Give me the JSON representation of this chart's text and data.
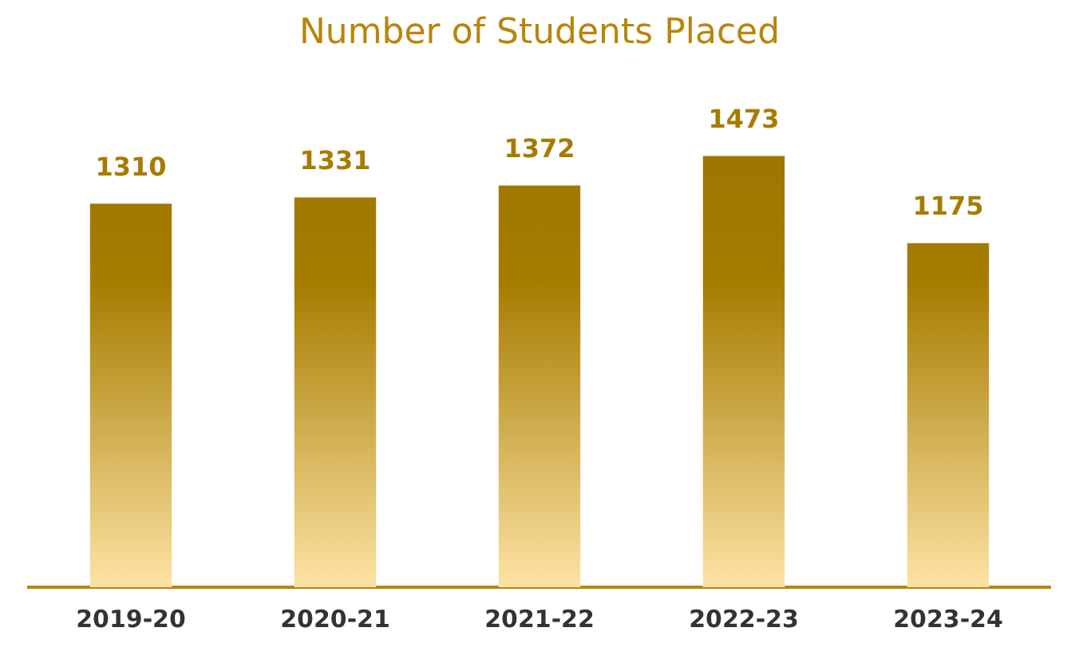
{
  "chart_data": {
    "type": "bar",
    "title": "Number of Students Placed",
    "categories": [
      "2019-20",
      "2020-21",
      "2021-22",
      "2022-23",
      "2023-24"
    ],
    "values": [
      1310,
      1331,
      1372,
      1473,
      1175
    ],
    "color": "#9c7400",
    "data_labels": true,
    "grid": false,
    "legend": false
  }
}
